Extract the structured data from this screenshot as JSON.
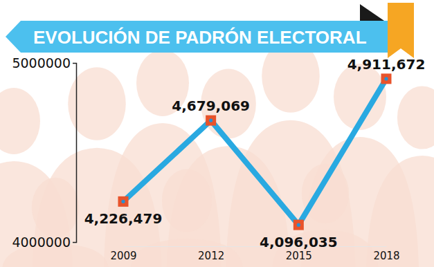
{
  "chart_data": {
    "type": "line",
    "title": "EVOLUCIÓN DE PADRÓN ELECTORAL",
    "categories": [
      "2009",
      "2012",
      "2015",
      "2018"
    ],
    "values": [
      4226479,
      4679069,
      4096035,
      4911672
    ],
    "value_labels": [
      "4,226,479",
      "4,679,069",
      "4,096,035",
      "4,911,672"
    ],
    "color": "#29a9e1",
    "marker": "square",
    "data_labels": true,
    "ylim": [
      4000000,
      5000000
    ],
    "yticks": [
      4000000,
      5000000
    ],
    "grid": false
  }
}
